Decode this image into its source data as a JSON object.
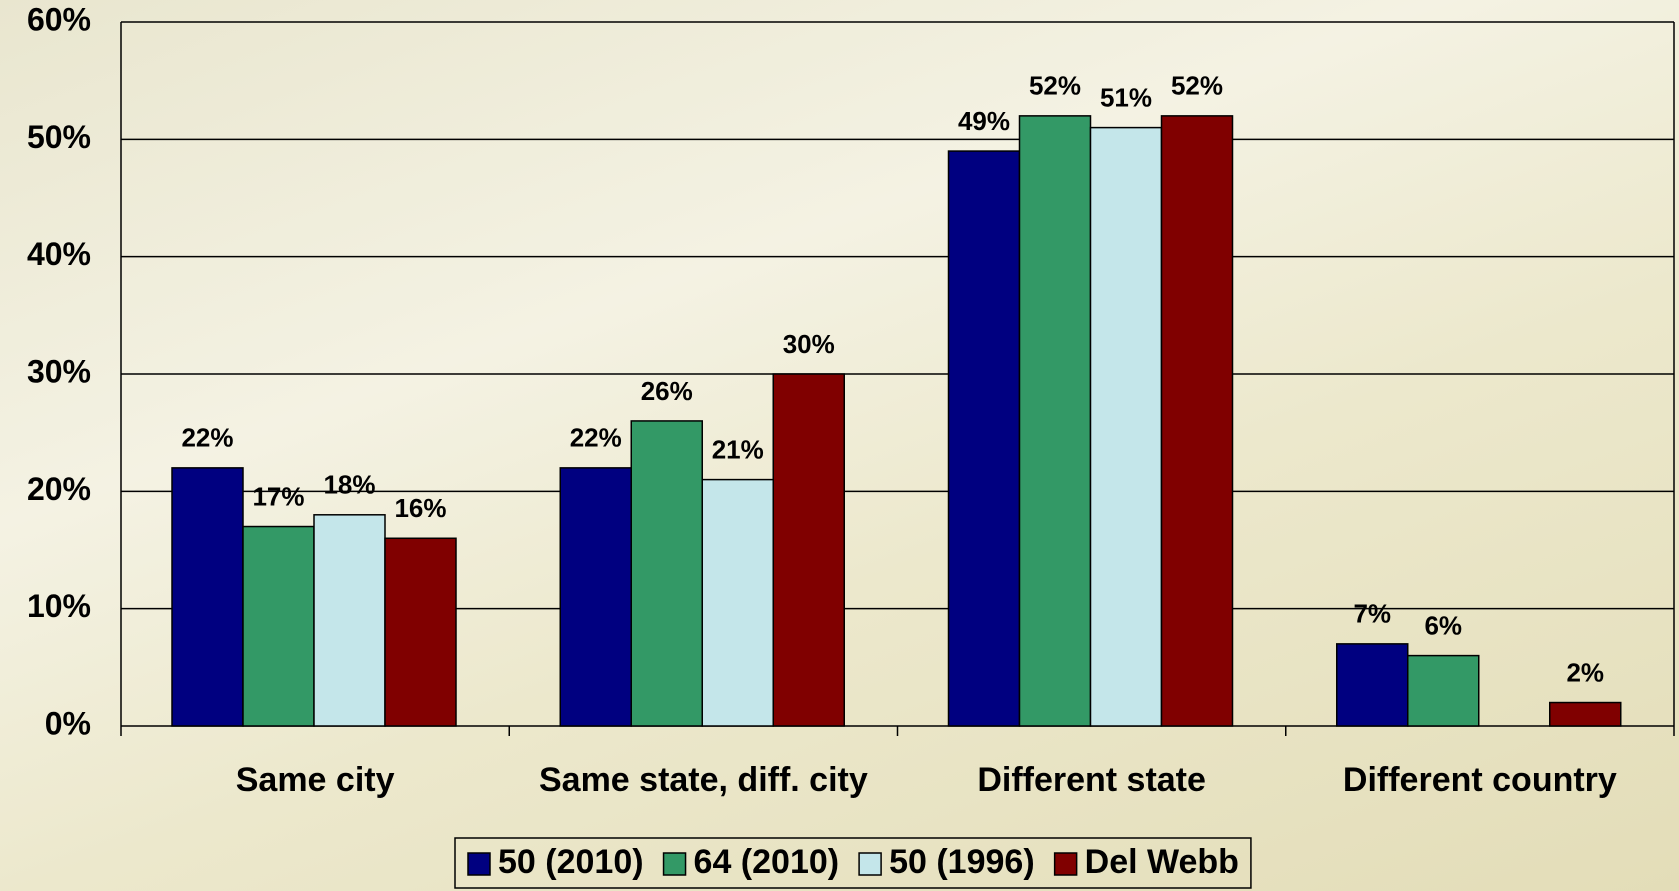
{
  "chart_data": {
    "type": "bar",
    "categories": [
      "Same city",
      "Same state, diff. city",
      "Different state",
      "Different country"
    ],
    "series": [
      {
        "name": "50 (2010)",
        "color": "#000080",
        "values": [
          22,
          22,
          49,
          7
        ],
        "value_labels": [
          "22%",
          "22%",
          "49%",
          "7%"
        ]
      },
      {
        "name": "64 (2010)",
        "color": "#339966",
        "values": [
          17,
          26,
          52,
          6
        ],
        "value_labels": [
          "17%",
          "26%",
          "52%",
          "6%"
        ]
      },
      {
        "name": "50 (1996)",
        "color": "#c4e6ea",
        "values": [
          18,
          21,
          51,
          null
        ],
        "value_labels": [
          "18%",
          "21%",
          "51%",
          null
        ]
      },
      {
        "name": "Del Webb",
        "color": "#800000",
        "values": [
          16,
          30,
          52,
          2
        ],
        "value_labels": [
          "16%",
          "30%",
          "52%",
          "2%"
        ]
      }
    ],
    "ylim": [
      0,
      60
    ],
    "yticks": [
      {
        "value": 0,
        "label": "0%"
      },
      {
        "value": 10,
        "label": "10%"
      },
      {
        "value": 20,
        "label": "20%"
      },
      {
        "value": 30,
        "label": "30%"
      },
      {
        "value": 40,
        "label": "40%"
      },
      {
        "value": 50,
        "label": "50%"
      },
      {
        "value": 60,
        "label": "60%"
      }
    ],
    "grid": true,
    "legend": "bottom"
  }
}
